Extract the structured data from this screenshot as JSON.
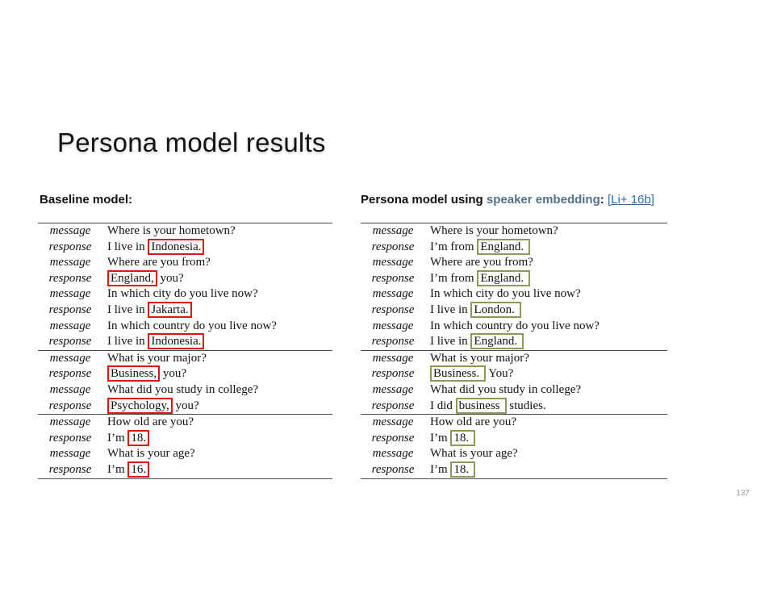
{
  "slide": {
    "title": "Persona model results",
    "page_number": "137"
  },
  "left_panel": {
    "heading": "Baseline model:",
    "highlight_color": "#e01212",
    "table": {
      "sections": [
        {
          "rows": [
            {
              "label": "message",
              "pre": "Where is your hometown?"
            },
            {
              "label": "response",
              "pre": "I live in ",
              "box": "Indonesia.",
              "post": ""
            },
            {
              "label": "message",
              "pre": "Where are you from?"
            },
            {
              "label": "response",
              "pre": "",
              "box": "England,",
              "post": " you?"
            },
            {
              "label": "message",
              "pre": "In which city do you live now?"
            },
            {
              "label": "response",
              "pre": "I live in ",
              "box": "Jakarta.",
              "post": ""
            },
            {
              "label": "message",
              "pre": "In which country do you live now?"
            },
            {
              "label": "response",
              "pre": "I live in ",
              "box": "Indonesia.",
              "post": ""
            }
          ]
        },
        {
          "rows": [
            {
              "label": "message",
              "pre": "What is your major?"
            },
            {
              "label": "response",
              "pre": "",
              "box": "Business,",
              "post": " you?"
            },
            {
              "label": "message",
              "pre": "What did you study in college?"
            },
            {
              "label": "response",
              "pre": "",
              "box": "Psychology,",
              "post": " you?"
            }
          ]
        },
        {
          "rows": [
            {
              "label": "message",
              "pre": "How old are you?"
            },
            {
              "label": "response",
              "pre": "I’m ",
              "box": "18.",
              "post": ""
            },
            {
              "label": "message",
              "pre": "What is your age?"
            },
            {
              "label": "response",
              "pre": "I’m ",
              "box": "16.",
              "post": ""
            }
          ]
        }
      ]
    }
  },
  "right_panel": {
    "heading_prefix": "Persona model using ",
    "heading_highlight": "speaker embedding",
    "heading_highlight_color": "#54718c",
    "heading_colon": ": ",
    "citation_open": "[",
    "citation_link": "Li+ 16b",
    "citation_close": "]",
    "citation_color": "#2f6da8",
    "highlight_color": "#879a57",
    "table": {
      "sections": [
        {
          "rows": [
            {
              "label": "message",
              "pre": "Where is your hometown?"
            },
            {
              "label": "response",
              "pre": "I’m from ",
              "box": "England.",
              "post": ""
            },
            {
              "label": "message",
              "pre": "Where are you from?"
            },
            {
              "label": "response",
              "pre": "I’m from ",
              "box": "England.",
              "post": ""
            },
            {
              "label": "message",
              "pre": "In which city do you live now?"
            },
            {
              "label": "response",
              "pre": "I live in ",
              "box": "London.",
              "post": ""
            },
            {
              "label": "message",
              "pre": "In which country do you live now?"
            },
            {
              "label": "response",
              "pre": "I live in ",
              "box": "England.",
              "post": ""
            }
          ]
        },
        {
          "rows": [
            {
              "label": "message",
              "pre": "What is your major?"
            },
            {
              "label": "response",
              "pre": "",
              "box": "Business.",
              "post": " You?"
            },
            {
              "label": "message",
              "pre": "What did you study in college?"
            },
            {
              "label": "response",
              "pre": "I did ",
              "box": "business",
              "post": " studies."
            }
          ]
        },
        {
          "rows": [
            {
              "label": "message",
              "pre": "How old are you?"
            },
            {
              "label": "response",
              "pre": "I’m ",
              "box": "18.",
              "post": ""
            },
            {
              "label": "message",
              "pre": "What is your age?"
            },
            {
              "label": "response",
              "pre": "I’m ",
              "box": "18.",
              "post": ""
            }
          ]
        }
      ]
    }
  }
}
